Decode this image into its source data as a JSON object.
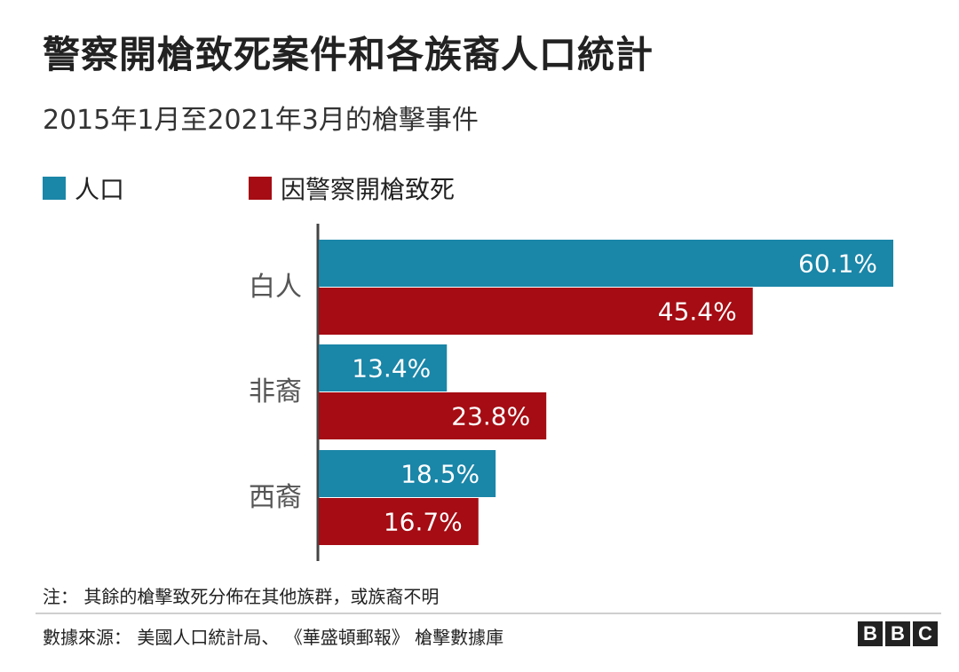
{
  "title": "警察開槍致死案件和各族裔人口統計",
  "subtitle": "2015年1月至2021年3月的槍擊事件",
  "legend": [
    {
      "label": "人口",
      "color": "#1a86a8"
    },
    {
      "label": "因警察開槍致死",
      "color": "#a50c13"
    }
  ],
  "chart_data": {
    "type": "bar",
    "orientation": "horizontal",
    "categories": [
      "白人",
      "非裔",
      "西裔"
    ],
    "series": [
      {
        "name": "人口",
        "values": [
          60.1,
          13.4,
          18.5
        ],
        "labels": [
          "60.1%",
          "13.4%",
          "18.5%"
        ],
        "color": "#1a86a8"
      },
      {
        "name": "因警察開槍致死",
        "values": [
          45.4,
          23.8,
          16.7
        ],
        "labels": [
          "45.4%",
          "23.8%",
          "16.7%"
        ],
        "color": "#a50c13"
      }
    ],
    "xlim": [
      0,
      60.1
    ],
    "grid": false,
    "legend_position": "top-left"
  },
  "note": "注：  其餘的槍擊致死分佈在其他族群，或族裔不明",
  "source": "數據來源：  美國人口統計局、 《華盛頓郵報》 槍擊數據庫",
  "logo": [
    "B",
    "B",
    "C"
  ]
}
